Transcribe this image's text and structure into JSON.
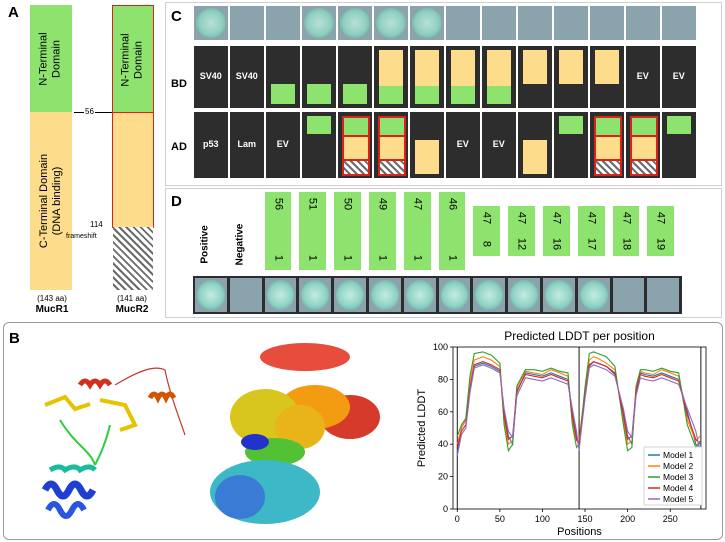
{
  "panelA": {
    "letter": "A",
    "mucr1": {
      "n_domain": "N-Terminal\nDomain",
      "c_domain": "C-Terminal Domain\n(DNA binding)",
      "aa": "(143 aa)",
      "name": "MucR1"
    },
    "mucr2": {
      "n_domain": "N-Terminal\nDomain",
      "aa": "(141 aa)",
      "name": "MucR2"
    },
    "pos56": "56",
    "pos114": "114",
    "frameshift": "frameshift"
  },
  "panelB": {
    "letter": "B",
    "chart_data": {
      "type": "line",
      "title": "Predicted LDDT per position",
      "xlabel": "Positions",
      "ylabel": "Predicted LDDT",
      "xlim": [
        -5,
        292
      ],
      "ylim": [
        0,
        100
      ],
      "xticks": [
        "0",
        "50",
        "100",
        "150",
        "200",
        "250"
      ],
      "yticks": [
        "0",
        "20",
        "40",
        "60",
        "80",
        "100"
      ],
      "vlines": [
        0,
        143,
        286
      ],
      "x": [
        0,
        5,
        10,
        15,
        20,
        30,
        40,
        50,
        55,
        60,
        65,
        70,
        80,
        90,
        100,
        110,
        120,
        130,
        135,
        140,
        143,
        145,
        150,
        155,
        160,
        165,
        175,
        185,
        195,
        200,
        205,
        210,
        215,
        220,
        230,
        240,
        250,
        260,
        270,
        280,
        285
      ],
      "series": [
        {
          "name": "Model 1",
          "color": "#1f77b4",
          "values": [
            35,
            50,
            55,
            75,
            88,
            90,
            88,
            85,
            60,
            45,
            40,
            72,
            84,
            83,
            82,
            84,
            82,
            80,
            60,
            45,
            38,
            50,
            70,
            88,
            91,
            90,
            88,
            83,
            60,
            45,
            40,
            72,
            84,
            83,
            82,
            84,
            82,
            80,
            60,
            40,
            38
          ]
        },
        {
          "name": "Model 2",
          "color": "#ff7f0e",
          "values": [
            40,
            50,
            55,
            78,
            92,
            94,
            92,
            88,
            55,
            40,
            42,
            75,
            85,
            84,
            83,
            86,
            84,
            82,
            55,
            42,
            42,
            52,
            72,
            92,
            94,
            93,
            90,
            86,
            55,
            40,
            42,
            75,
            85,
            84,
            83,
            86,
            84,
            82,
            55,
            42,
            45
          ]
        },
        {
          "name": "Model 3",
          "color": "#2ca02c",
          "values": [
            45,
            52,
            56,
            82,
            96,
            97,
            95,
            90,
            52,
            36,
            40,
            76,
            86,
            86,
            85,
            87,
            85,
            84,
            52,
            38,
            40,
            50,
            75,
            96,
            97,
            96,
            94,
            88,
            52,
            36,
            38,
            76,
            86,
            86,
            85,
            87,
            85,
            84,
            52,
            38,
            42
          ]
        },
        {
          "name": "Model 4",
          "color": "#d62728",
          "values": [
            38,
            48,
            52,
            74,
            89,
            91,
            89,
            86,
            58,
            43,
            45,
            73,
            83,
            82,
            81,
            83,
            81,
            79,
            58,
            43,
            40,
            48,
            70,
            89,
            91,
            90,
            88,
            84,
            58,
            43,
            45,
            73,
            83,
            82,
            81,
            83,
            81,
            79,
            58,
            43,
            40
          ]
        },
        {
          "name": "Model 5",
          "color": "#9467bd",
          "values": [
            33,
            46,
            50,
            72,
            87,
            89,
            87,
            84,
            62,
            48,
            44,
            70,
            81,
            80,
            79,
            81,
            79,
            77,
            62,
            48,
            36,
            46,
            68,
            87,
            89,
            88,
            86,
            82,
            62,
            48,
            44,
            70,
            81,
            80,
            79,
            81,
            79,
            77,
            62,
            48,
            36
          ]
        }
      ],
      "legend_position": "bottom-right"
    }
  },
  "panelC": {
    "letter": "C",
    "row_bd": "BD",
    "row_ad": "AD",
    "bd_labels": [
      "SV40",
      "SV40",
      "",
      "",
      "",
      "",
      "",
      "",
      "",
      "",
      "",
      "",
      "EV",
      "EV"
    ],
    "ad_labels": [
      "p53",
      "Lam",
      "EV",
      "",
      "",
      "",
      "",
      "EV",
      "EV",
      "",
      "",
      "",
      "",
      ""
    ],
    "growth": [
      true,
      false,
      false,
      true,
      true,
      true,
      true,
      false,
      false,
      false,
      false,
      false,
      false,
      false
    ]
  },
  "panelD": {
    "letter": "D",
    "positive": "Positive",
    "negative": "Negative",
    "fragments": [
      {
        "end": "56",
        "start": "1"
      },
      {
        "end": "51",
        "start": "1"
      },
      {
        "end": "50",
        "start": "1"
      },
      {
        "end": "49",
        "start": "1"
      },
      {
        "end": "47",
        "start": "1"
      },
      {
        "end": "46",
        "start": "1"
      },
      {
        "end": "47",
        "start": "8"
      },
      {
        "end": "47",
        "start": "12"
      },
      {
        "end": "47",
        "start": "16"
      },
      {
        "end": "47",
        "start": "17"
      },
      {
        "end": "47",
        "start": "18"
      },
      {
        "end": "47",
        "start": "19"
      }
    ]
  },
  "colors": {
    "green": "#8ee36e",
    "yellow": "#fddc8c",
    "dark": "#2d2d2d",
    "border_red": "#d9221c"
  }
}
